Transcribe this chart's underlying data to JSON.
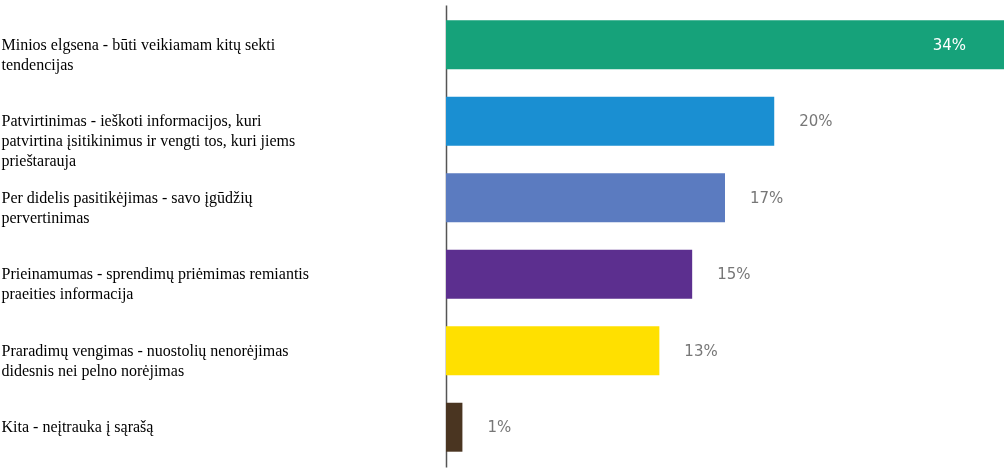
{
  "chart_data": {
    "type": "bar",
    "orientation": "horizontal",
    "categories": [
      "Minios elgsena - būti veikiamam kitų sekti tendencijas",
      "Patvirtinimas - ieškoti informacijos, kuri patvirtina įsitikinimus ir vengti tos, kuri jiems prieštarauja",
      "Per didelis pasitikėjimas - savo įgūdžių pervertinimas",
      "Prieinamumas - sprendimų priėmimas remiantis praeities informacija",
      "Praradimų vengimas - nuostolių nenorėjimas didesnis nei pelno norėjimas",
      "Kita - neįtrauka į sąrašą"
    ],
    "values": [
      34,
      20,
      17,
      15,
      13,
      1
    ],
    "colors": [
      "#16a27a",
      "#1a8fd2",
      "#5b7bc0",
      "#5c2f8f",
      "#ffe000",
      "#4a3521"
    ],
    "value_labels": [
      "34%",
      "20%",
      "17%",
      "15%",
      "13%",
      "1%"
    ],
    "grid": false
  }
}
